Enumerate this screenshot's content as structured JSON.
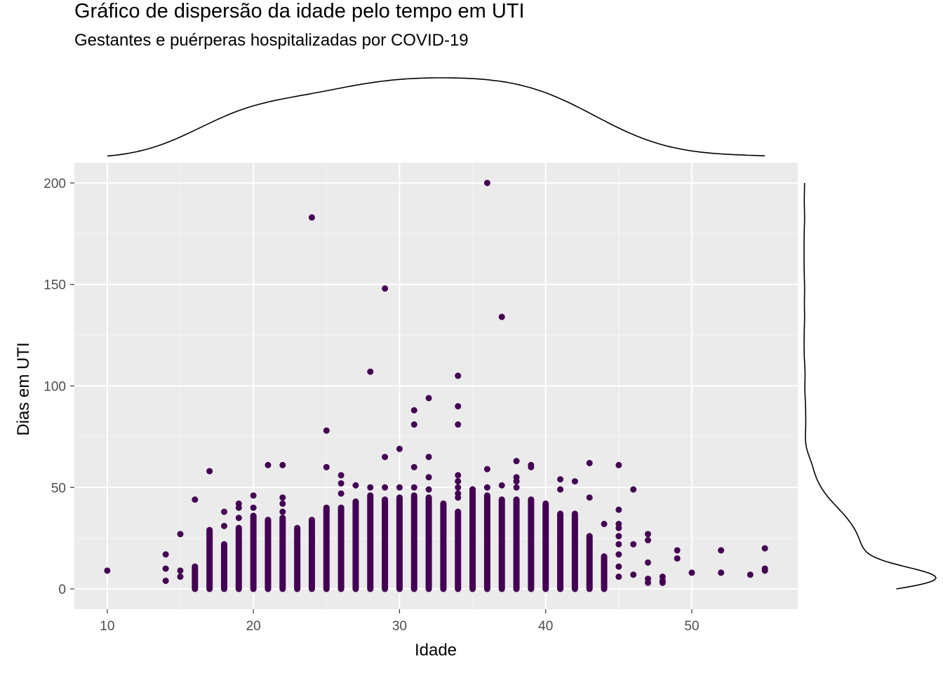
{
  "chart_data": {
    "type": "scatter",
    "title": "Gráfico de dispersão da idade pelo tempo em UTI",
    "subtitle": "Gestantes e puérperas hospitalizadas por COVID-19",
    "xlabel": "Idade",
    "ylabel": "Dias em UTI",
    "xlim": [
      7.75,
      57.25
    ],
    "ylim": [
      -10,
      210
    ],
    "x_ticks": [
      10,
      20,
      30,
      40,
      50
    ],
    "y_ticks": [
      0,
      50,
      100,
      150,
      200
    ],
    "grid": true,
    "marginal_density": {
      "top": "x",
      "right": "y"
    },
    "point_color": "#440154",
    "panel_color": "#EBEBEB",
    "columns": [
      {
        "x": 16,
        "max": 11
      },
      {
        "x": 17,
        "max": 29
      },
      {
        "x": 18,
        "max": 22
      },
      {
        "x": 19,
        "max": 30
      },
      {
        "x": 20,
        "max": 36
      },
      {
        "x": 21,
        "max": 34
      },
      {
        "x": 22,
        "max": 35
      },
      {
        "x": 23,
        "max": 30
      },
      {
        "x": 24,
        "max": 34
      },
      {
        "x": 25,
        "max": 40
      },
      {
        "x": 26,
        "max": 40
      },
      {
        "x": 27,
        "max": 43
      },
      {
        "x": 28,
        "max": 46
      },
      {
        "x": 29,
        "max": 44
      },
      {
        "x": 30,
        "max": 45
      },
      {
        "x": 31,
        "max": 46
      },
      {
        "x": 32,
        "max": 45
      },
      {
        "x": 33,
        "max": 42
      },
      {
        "x": 34,
        "max": 38
      },
      {
        "x": 35,
        "max": 49
      },
      {
        "x": 36,
        "max": 46
      },
      {
        "x": 37,
        "max": 44
      },
      {
        "x": 38,
        "max": 44
      },
      {
        "x": 39,
        "max": 44
      },
      {
        "x": 40,
        "max": 42
      },
      {
        "x": 41,
        "max": 37
      },
      {
        "x": 42,
        "max": 37
      },
      {
        "x": 43,
        "max": 26
      },
      {
        "x": 44,
        "max": 16
      }
    ],
    "points": [
      [
        10,
        9
      ],
      [
        14,
        4
      ],
      [
        14,
        10
      ],
      [
        14,
        17
      ],
      [
        15,
        6
      ],
      [
        15,
        9
      ],
      [
        15,
        27
      ],
      [
        16,
        44
      ],
      [
        17,
        58
      ],
      [
        18,
        31
      ],
      [
        18,
        38
      ],
      [
        19,
        35
      ],
      [
        19,
        40
      ],
      [
        19,
        42
      ],
      [
        20,
        40
      ],
      [
        20,
        46
      ],
      [
        21,
        61
      ],
      [
        22,
        38
      ],
      [
        22,
        42
      ],
      [
        22,
        45
      ],
      [
        22,
        61
      ],
      [
        24,
        183
      ],
      [
        25,
        60
      ],
      [
        25,
        78
      ],
      [
        26,
        47
      ],
      [
        26,
        52
      ],
      [
        26,
        56
      ],
      [
        27,
        51
      ],
      [
        28,
        50
      ],
      [
        28,
        107
      ],
      [
        29,
        50
      ],
      [
        29,
        65
      ],
      [
        29,
        148
      ],
      [
        30,
        50
      ],
      [
        30,
        69
      ],
      [
        31,
        50
      ],
      [
        31,
        60
      ],
      [
        31,
        81
      ],
      [
        31,
        88
      ],
      [
        32,
        49
      ],
      [
        32,
        55
      ],
      [
        32,
        65
      ],
      [
        32,
        94
      ],
      [
        34,
        45
      ],
      [
        34,
        47
      ],
      [
        34,
        50
      ],
      [
        34,
        53
      ],
      [
        34,
        56
      ],
      [
        34,
        81
      ],
      [
        34,
        90
      ],
      [
        34,
        105
      ],
      [
        35,
        49
      ],
      [
        36,
        50
      ],
      [
        36,
        59
      ],
      [
        36,
        200
      ],
      [
        37,
        51
      ],
      [
        37,
        134
      ],
      [
        38,
        50
      ],
      [
        38,
        53
      ],
      [
        38,
        55
      ],
      [
        38,
        63
      ],
      [
        39,
        60
      ],
      [
        39,
        61
      ],
      [
        41,
        49
      ],
      [
        41,
        54
      ],
      [
        42,
        53
      ],
      [
        43,
        45
      ],
      [
        43,
        62
      ],
      [
        44,
        32
      ],
      [
        45,
        6
      ],
      [
        45,
        11
      ],
      [
        45,
        17
      ],
      [
        45,
        22
      ],
      [
        45,
        26
      ],
      [
        45,
        30
      ],
      [
        45,
        32
      ],
      [
        45,
        39
      ],
      [
        45,
        61
      ],
      [
        46,
        7
      ],
      [
        46,
        22
      ],
      [
        46,
        49
      ],
      [
        47,
        3
      ],
      [
        47,
        5
      ],
      [
        47,
        13
      ],
      [
        47,
        24
      ],
      [
        47,
        27
      ],
      [
        48,
        3
      ],
      [
        48,
        4
      ],
      [
        48,
        6
      ],
      [
        49,
        15
      ],
      [
        49,
        19
      ],
      [
        50,
        8
      ],
      [
        52,
        8
      ],
      [
        52,
        19
      ],
      [
        54,
        7
      ],
      [
        55,
        9
      ],
      [
        55,
        10
      ],
      [
        55,
        20
      ]
    ]
  }
}
